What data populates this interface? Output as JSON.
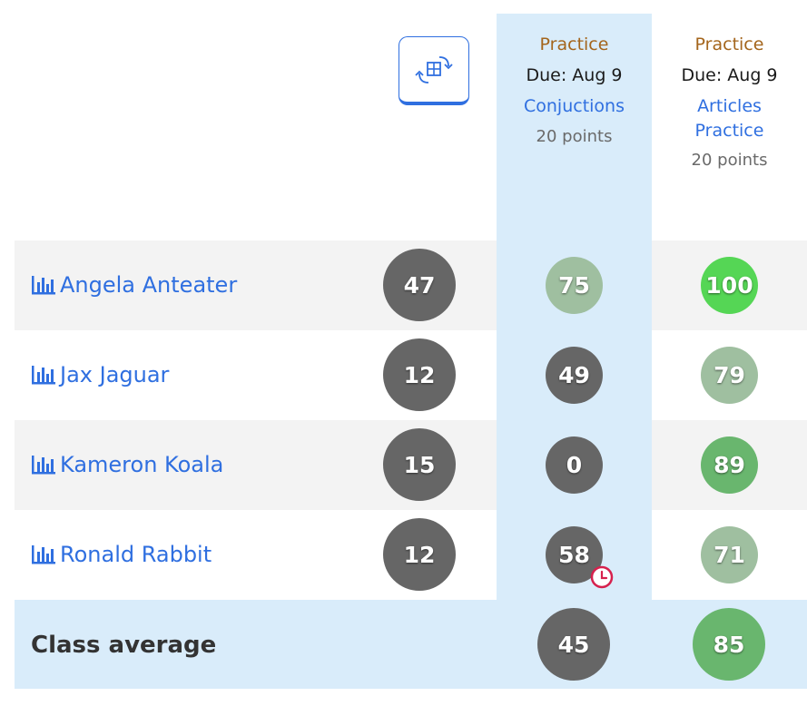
{
  "toolbar": {
    "toggle_icon": "swap-table-icon"
  },
  "assignments": [
    {
      "type": "Practice",
      "due": "Due: Aug 9",
      "title": "Conjuctions",
      "points": "20 points"
    },
    {
      "type": "Practice",
      "due": "Due: Aug 9",
      "title": "Articles Practice",
      "points": "20 points"
    }
  ],
  "students": [
    {
      "name": "Angela Anteater",
      "overall": "47",
      "scores": [
        "75",
        "100"
      ]
    },
    {
      "name": "Jax Jaguar",
      "overall": "12",
      "scores": [
        "49",
        "79"
      ]
    },
    {
      "name": "Kameron Koala",
      "overall": "15",
      "scores": [
        "0",
        "89"
      ]
    },
    {
      "name": "Ronald Rabbit",
      "overall": "12",
      "scores": [
        "58",
        "71"
      ]
    }
  ],
  "class_average": {
    "label": "Class average",
    "scores": [
      "45",
      "85"
    ]
  },
  "colors": {
    "link": "#2f6fe0",
    "assignment_type": "#a4651c",
    "highlight": "#d9ecfa",
    "score_gray": "#666666",
    "score_light_green": "#9fbfa0",
    "score_green": "#69b66e",
    "score_bright_green": "#55d655",
    "late_icon": "#d6204d"
  },
  "icons": {
    "student_report": "bar-chart-icon",
    "late": "clock-icon"
  }
}
